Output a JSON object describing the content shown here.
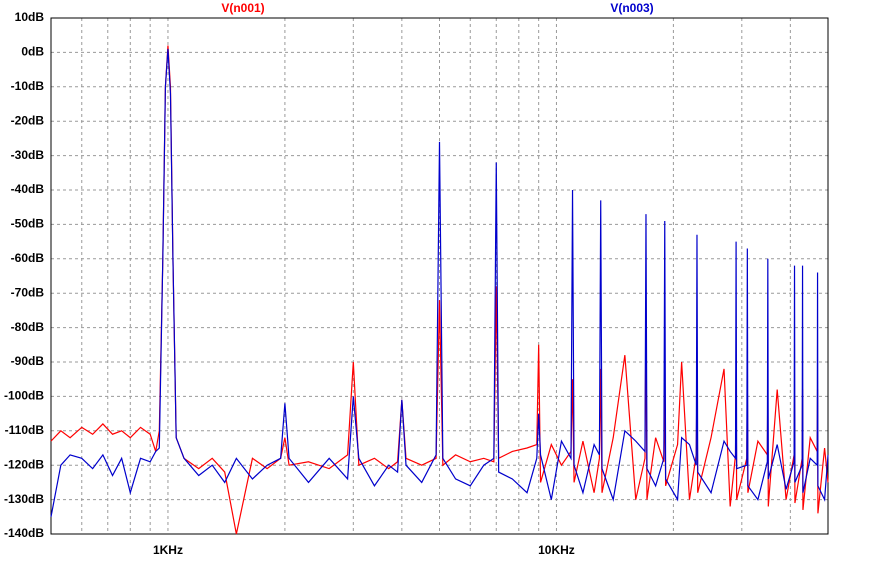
{
  "chart_data": {
    "type": "line",
    "xscale": "log",
    "grid": true,
    "xlim": [
      500,
      50000
    ],
    "ylim": [
      -140,
      10
    ],
    "xticks": [
      {
        "value": 1000,
        "label": "1KHz"
      },
      {
        "value": 10000,
        "label": "10KHz"
      }
    ],
    "x_minor_grid": [
      600,
      700,
      800,
      900,
      2000,
      3000,
      4000,
      5000,
      6000,
      7000,
      8000,
      9000,
      20000,
      30000,
      40000
    ],
    "yticks": [
      {
        "value": 10,
        "label": "10dB"
      },
      {
        "value": 0,
        "label": "0dB"
      },
      {
        "value": -10,
        "label": "-10dB"
      },
      {
        "value": -20,
        "label": "-20dB"
      },
      {
        "value": -30,
        "label": "-30dB"
      },
      {
        "value": -40,
        "label": "-40dB"
      },
      {
        "value": -50,
        "label": "-50dB"
      },
      {
        "value": -60,
        "label": "-60dB"
      },
      {
        "value": -70,
        "label": "-70dB"
      },
      {
        "value": -80,
        "label": "-80dB"
      },
      {
        "value": -90,
        "label": "-90dB"
      },
      {
        "value": -100,
        "label": "-100dB"
      },
      {
        "value": -110,
        "label": "-110dB"
      },
      {
        "value": -120,
        "label": "-120dB"
      },
      {
        "value": -130,
        "label": "-130dB"
      },
      {
        "value": -140,
        "label": "-140dB"
      }
    ],
    "x": [
      500,
      530,
      560,
      600,
      640,
      680,
      720,
      760,
      800,
      850,
      900,
      930,
      950,
      970,
      985,
      1000,
      1015,
      1030,
      1050,
      1100,
      1200,
      1300,
      1400,
      1500,
      1650,
      1800,
      1950,
      2000,
      2050,
      2300,
      2600,
      2900,
      3000,
      3100,
      3400,
      3700,
      3900,
      4000,
      4100,
      4500,
      4900,
      5000,
      5100,
      5500,
      6000,
      6500,
      6900,
      7000,
      7100,
      7700,
      8400,
      8900,
      9000,
      9100,
      9700,
      10300,
      10900,
      11000,
      11100,
      11700,
      12500,
      12900,
      13000,
      13100,
      14000,
      15000,
      16000,
      16900,
      17000,
      17100,
      18000,
      18900,
      19000,
      19100,
      20500,
      21000,
      22000,
      22900,
      23000,
      23100,
      25000,
      27000,
      28000,
      28900,
      29000,
      29100,
      30900,
      31000,
      31100,
      33000,
      34900,
      35000,
      35100,
      37000,
      39000,
      40900,
      41000,
      41100,
      42900,
      43000,
      43100,
      45000,
      46900,
      47000,
      47100,
      49000,
      50000
    ],
    "series": [
      {
        "name": "V(n001)",
        "color": "#ff0000",
        "values": [
          -113,
          -110,
          -112,
          -109,
          -111,
          -108,
          -111,
          -110,
          -112,
          -109,
          -111,
          -116,
          -110,
          -60,
          -10,
          2,
          -10,
          -60,
          -112,
          -118,
          -121,
          -118,
          -122,
          -140,
          -118,
          -121,
          -118,
          -112,
          -120,
          -119,
          -121,
          -117,
          -90,
          -120,
          -118,
          -121,
          -119,
          -101,
          -118,
          -120,
          -118,
          -72,
          -120,
          -117,
          -119,
          -118,
          -119,
          -68,
          -118,
          -116,
          -115,
          -114,
          -85,
          -125,
          -114,
          -120,
          -116,
          -95,
          -125,
          -113,
          -128,
          -118,
          -92,
          -128,
          -112,
          -88,
          -130,
          -118,
          -75,
          -130,
          -112,
          -119,
          -95,
          -126,
          -114,
          -90,
          -130,
          -117,
          -93,
          -128,
          -112,
          -92,
          -132,
          -117,
          -92,
          -130,
          -118,
          -96,
          -128,
          -113,
          -117,
          -95,
          -132,
          -98,
          -130,
          -117,
          -100,
          -131,
          -118,
          -98,
          -133,
          -112,
          -116,
          -98,
          -134,
          -115,
          -125
        ]
      },
      {
        "name": "V(n003)",
        "color": "#0000cc",
        "values": [
          -135,
          -120,
          -117,
          -118,
          -121,
          -117,
          -123,
          -118,
          -128,
          -118,
          -119,
          -116,
          -115,
          -60,
          -10,
          1,
          -12,
          -60,
          -112,
          -118,
          -123,
          -120,
          -125,
          -118,
          -124,
          -120,
          -118,
          -102,
          -118,
          -125,
          -118,
          -124,
          -100,
          -118,
          -126,
          -120,
          -122,
          -101,
          -120,
          -125,
          -117,
          -26,
          -118,
          -124,
          -126,
          -120,
          -118,
          -32,
          -122,
          -124,
          -128,
          -118,
          -105,
          -117,
          -130,
          -113,
          -118,
          -40,
          -120,
          -128,
          -114,
          -117,
          -43,
          -121,
          -130,
          -110,
          -113,
          -116,
          -47,
          -121,
          -126,
          -118,
          -49,
          -124,
          -130,
          -112,
          -114,
          -120,
          -53,
          -122,
          -128,
          -113,
          -116,
          -118,
          -55,
          -121,
          -120,
          -57,
          -126,
          -130,
          -119,
          -60,
          -124,
          -114,
          -127,
          -119,
          -62,
          -125,
          -120,
          -62,
          -128,
          -118,
          -120,
          -64,
          -126,
          -130,
          -117
        ]
      }
    ]
  }
}
